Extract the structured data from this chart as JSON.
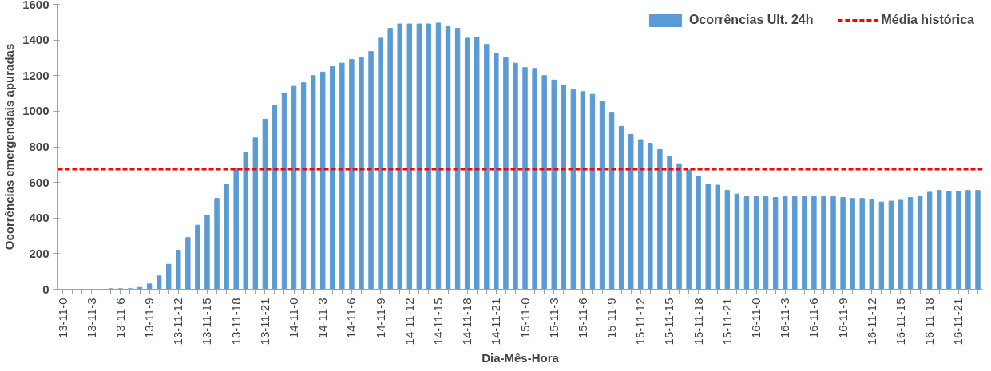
{
  "chart_data": {
    "type": "bar",
    "xlabel": "Dia-Mês-Hora",
    "ylabel": "Ocorrências emergenciais apuradas",
    "categories": [
      "13-11-0",
      null,
      null,
      "13-11-3",
      null,
      null,
      "13-11-6",
      null,
      null,
      "13-11-9",
      null,
      null,
      "13-11-12",
      null,
      null,
      "13-11-15",
      null,
      null,
      "13-11-18",
      null,
      null,
      "13-11-21",
      null,
      null,
      "14-11-0",
      null,
      null,
      "14-11-3",
      null,
      null,
      "14-11-6",
      null,
      null,
      "14-11-9",
      null,
      null,
      "14-11-12",
      null,
      null,
      "14-11-15",
      null,
      null,
      "14-11-18",
      null,
      null,
      "14-11-21",
      null,
      null,
      "15-11-0",
      null,
      null,
      "15-11-3",
      null,
      null,
      "15-11-6",
      null,
      null,
      "15-11-9",
      null,
      null,
      "15-11-12",
      null,
      null,
      "15-11-15",
      null,
      null,
      "15-11-18",
      null,
      null,
      "15-11-21",
      null,
      null,
      "16-11-0",
      null,
      null,
      "16-11-3",
      null,
      null,
      "16-11-6",
      null,
      null,
      "16-11-9",
      null,
      null,
      "16-11-12",
      null,
      null,
      "16-11-15",
      null,
      null,
      "16-11-18",
      null,
      null,
      "16-11-21",
      null,
      null
    ],
    "series": [
      {
        "name": "Ocorrências Ult. 24h",
        "color": "#5b9bd5",
        "values": [
          0,
          0,
          0,
          0,
          0,
          3,
          3,
          3,
          10,
          30,
          75,
          140,
          220,
          290,
          360,
          415,
          510,
          590,
          680,
          770,
          850,
          955,
          1035,
          1100,
          1140,
          1160,
          1200,
          1220,
          1250,
          1270,
          1290,
          1300,
          1335,
          1410,
          1465,
          1490,
          1490,
          1490,
          1490,
          1495,
          1475,
          1465,
          1410,
          1415,
          1375,
          1325,
          1300,
          1270,
          1245,
          1240,
          1200,
          1175,
          1145,
          1120,
          1110,
          1095,
          1055,
          990,
          915,
          870,
          840,
          820,
          785,
          745,
          705,
          670,
          635,
          590,
          585,
          555,
          535,
          520,
          520,
          520,
          515,
          520,
          520,
          520,
          520,
          520,
          520,
          515,
          510,
          510,
          505,
          490,
          495,
          500,
          515,
          520,
          545,
          555,
          550,
          550,
          555,
          555
        ]
      }
    ],
    "ref_lines": [
      {
        "axis": "y",
        "value": 675,
        "label": "Média histórica",
        "color": "#ff0000",
        "line_style": "dashed"
      }
    ],
    "ylim": [
      0,
      1600
    ],
    "yticks": [
      0,
      200,
      400,
      600,
      800,
      1000,
      1200,
      1400,
      1600
    ],
    "grid": false,
    "legend": "top right"
  }
}
